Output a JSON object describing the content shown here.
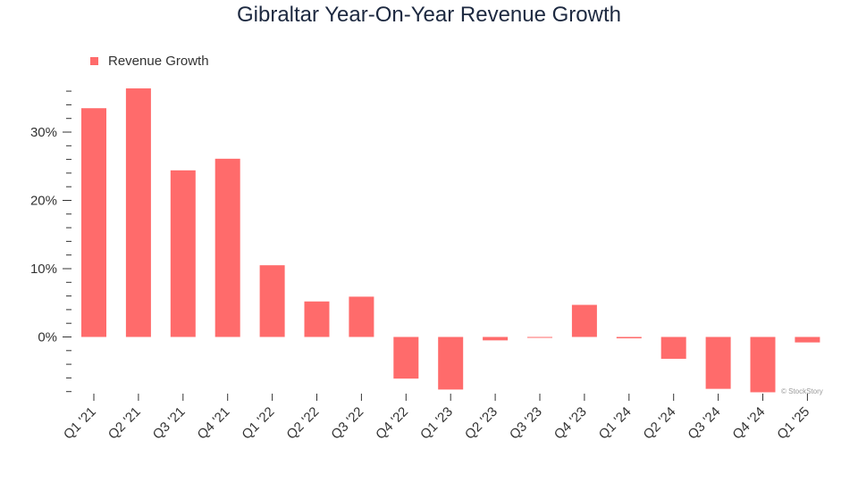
{
  "colors": {
    "bar": "#ff6b6b",
    "axis": "#333333",
    "title": "#1d2940"
  },
  "watermark": "© StockStory",
  "chart_data": {
    "type": "bar",
    "title": "Gibraltar Year-On-Year Revenue Growth",
    "xlabel": "",
    "ylabel": "",
    "categories": [
      "Q1 '21",
      "Q2 '21",
      "Q3 '21",
      "Q4 '21",
      "Q1 '22",
      "Q2 '22",
      "Q3 '22",
      "Q4 '22",
      "Q1 '23",
      "Q2 '23",
      "Q3 '23",
      "Q4 '23",
      "Q1 '24",
      "Q2 '24",
      "Q3 '24",
      "Q4 '24",
      "Q1 '25"
    ],
    "series": [
      {
        "name": "Revenue Growth",
        "values": [
          33.5,
          36.4,
          24.4,
          26.1,
          10.5,
          5.2,
          5.9,
          -6.1,
          -7.7,
          -0.5,
          -0.1,
          4.7,
          -0.2,
          -3.2,
          -7.6,
          -8.1,
          -0.8
        ]
      }
    ],
    "ylim": [
      -8.3,
      36.4
    ],
    "yticks": [
      0,
      10,
      20,
      30
    ],
    "ytick_labels": [
      "0%",
      "10%",
      "20%",
      "30%"
    ],
    "legend": "top-left",
    "grid": false
  }
}
